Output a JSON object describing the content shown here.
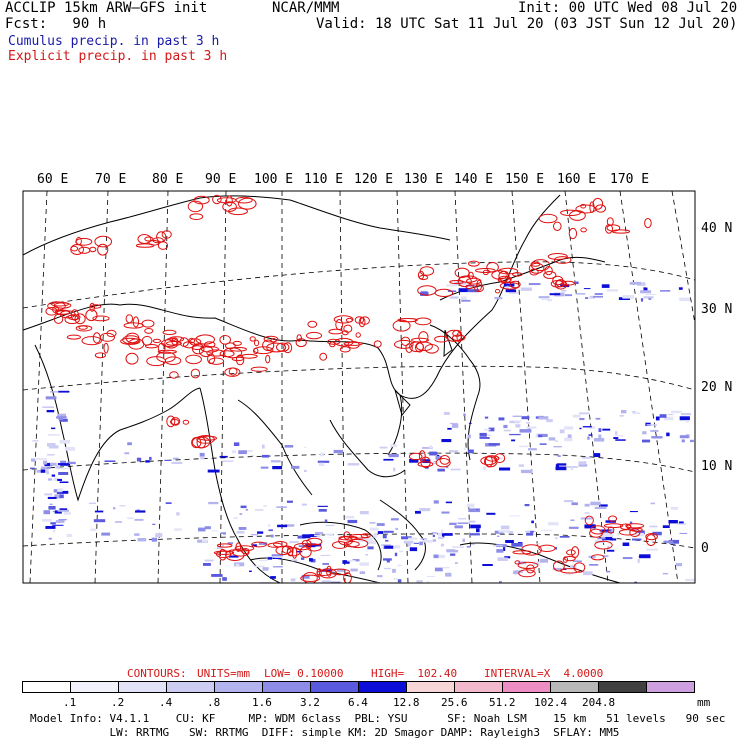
{
  "header": {
    "model_title": "ACCLIP 15km ARW–GFS init",
    "org": "NCAR/MMM",
    "init": "Init: 00 UTC Wed 08 Jul 20",
    "fcst": "Fcst:   90 h",
    "valid": "Valid: 18 UTC Sat 11 Jul 20 (03 JST Sun 12 Jul 20)",
    "field_cumulus": "Cumulus precip. in past 3 h",
    "field_explicit": "Explicit precip. in past 3 h"
  },
  "map": {
    "lon_labels": [
      "60 E",
      "70 E",
      "80 E",
      "90 E",
      "100 E",
      "110 E",
      "120 E",
      "130 E",
      "140 E",
      "150 E",
      "160 E",
      "170 E"
    ],
    "lat_labels": [
      "40 N",
      "30 N",
      "20 N",
      "10 N",
      "0"
    ]
  },
  "contours": {
    "label": "CONTOURS:",
    "units": "UNITS=mm",
    "low": "LOW= 0.10000",
    "high": "HIGH=  102.40",
    "interval": "INTERVAL=X  4.0000"
  },
  "colorbar": {
    "colors": [
      "#ffffff",
      "#f2f2fc",
      "#e3e3f8",
      "#cdcdf4",
      "#b3b3ee",
      "#8d8de8",
      "#5a5adf",
      "#0d0dd8",
      "#f6d6d6",
      "#f2b8cc",
      "#ee8cc4",
      "#b8b8b8",
      "#404040",
      "#cfa0e0"
    ],
    "labels": [
      ".1",
      ".2",
      ".4",
      ".8",
      "1.6",
      "3.2",
      "6.4",
      "12.8",
      "25.6",
      "51.2",
      "102.4",
      "204.8"
    ],
    "units": "mm"
  },
  "footer": {
    "line1": "Model Info: V4.1.1    CU: KF     MP: WDM 6class  PBL: YSU      SF: Noah LSM    15 km   51 levels   90 sec",
    "line2": "            LW: RRTMG   SW: RRTMG  DIFF: simple KM: 2D Smagor DAMP: Rayleigh3  SFLAY: MM5"
  }
}
